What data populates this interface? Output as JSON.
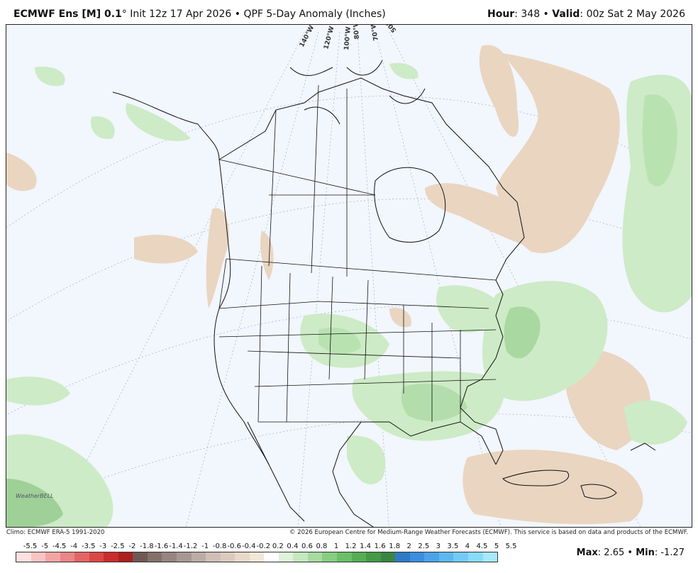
{
  "header": {
    "model": "ECMWF Ens [M] 0.1",
    "degree": "°",
    "init": " Init 12z 17 Apr 2026",
    "bullet": " • ",
    "product": "QPF 5-Day Anomaly (Inches)",
    "hour_label": "Hour",
    "hour_value": ": 348",
    "valid_label": "Valid",
    "valid_value": ": 00z Sat 2 May 2026"
  },
  "map": {
    "meridian_labels": [
      "140°W",
      "120°W",
      "100°W",
      "80°W",
      "70°W",
      "50°W"
    ],
    "watermark": "WeatherBELL"
  },
  "footer": {
    "climo": "Climo: ECMWF ERA-5 1991-2020",
    "copyright": "© 2026 European Centre for Medium-Range Weather Forecasts (ECMWF). This service is based on data and products of the ECMWF.",
    "max_label": "Max",
    "max_value": ": 2.65",
    "min_label": "Min",
    "min_value": ": -1.27"
  },
  "colorbar": {
    "labels": [
      "-5.5",
      "-5",
      "-4.5",
      "-4",
      "-3.5",
      "-3",
      "-2.5",
      "-2",
      "-1.8",
      "-1.6",
      "-1.4",
      "-1.2",
      "-1",
      "-0.8",
      "-0.6",
      "-0.4",
      "-0.2",
      "0.2",
      "0.4",
      "0.6",
      "0.8",
      "1",
      "1.2",
      "1.4",
      "1.6",
      "1.8",
      "2",
      "2.5",
      "3",
      "3.5",
      "4",
      "4.5",
      "5",
      "5.5"
    ],
    "colors": [
      "#fde0e0",
      "#f9c4c4",
      "#f3a5a5",
      "#ec8585",
      "#e46565",
      "#db4646",
      "#c92d2d",
      "#ad1f1f",
      "#6e5a52",
      "#84716a",
      "#968580",
      "#a89893",
      "#bcaca6",
      "#cfbfb7",
      "#dccbbc",
      "#e8d9c8",
      "#f3e7d7",
      "#ffffff",
      "#dff2da",
      "#c4e8bf",
      "#a6dba0",
      "#88cd82",
      "#6bbf68",
      "#55ad54",
      "#449a45",
      "#3a8542",
      "#2f7ac8",
      "#3b8ee0",
      "#4ba3ec",
      "#5db8f2",
      "#72cbf6",
      "#88dcf9",
      "#a6e9fb"
    ]
  }
}
